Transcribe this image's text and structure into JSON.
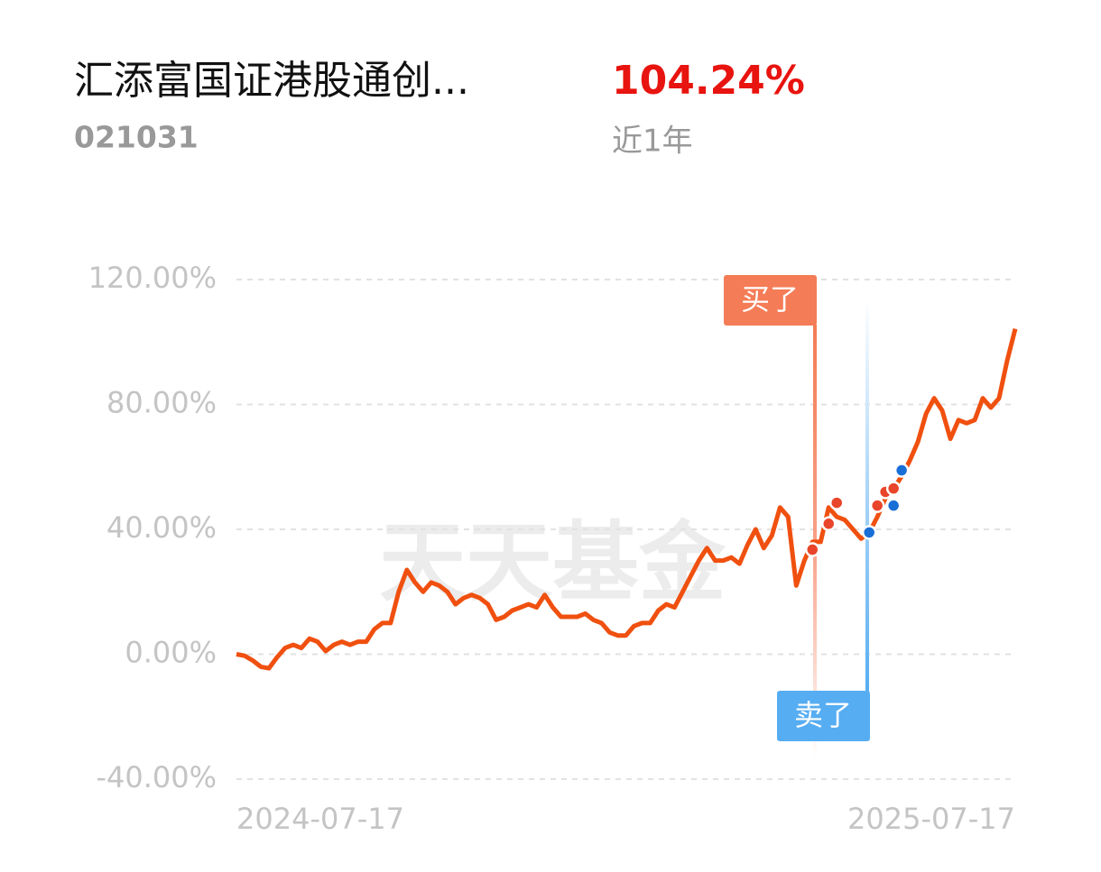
{
  "header": {
    "title": "汇添富国证港股通创...",
    "code": "021031",
    "return": "104.24%",
    "period": "近1年"
  },
  "chart_data": {
    "type": "line",
    "watermark": "天天基金",
    "color": "#f0500f",
    "categories": [
      "2024-07-17",
      null,
      null,
      null,
      null,
      null,
      null,
      null,
      null,
      null,
      null,
      null,
      null,
      null,
      null,
      null,
      null,
      null,
      null,
      null,
      null,
      null,
      null,
      null,
      null,
      null,
      null,
      null,
      null,
      null,
      null,
      null,
      null,
      null,
      null,
      null,
      null,
      null,
      null,
      null,
      null,
      null,
      null,
      null,
      null,
      null,
      null,
      null,
      null,
      null,
      null,
      null,
      null,
      null,
      null,
      null,
      null,
      null,
      null,
      null,
      null,
      null,
      null,
      null,
      null,
      null,
      null,
      null,
      null,
      null,
      null,
      null,
      null,
      null,
      null,
      null,
      null,
      null,
      null,
      null,
      null,
      null,
      null,
      null,
      null,
      null,
      null,
      null,
      null,
      null,
      null,
      null,
      null,
      null,
      null,
      null,
      "2025-07-17"
    ],
    "values": [
      0,
      -0.5,
      -2,
      -4,
      -4.5,
      -1,
      2,
      3,
      2,
      5,
      4,
      1,
      3,
      4,
      3,
      4,
      4,
      8,
      10,
      10,
      20,
      27,
      23,
      20,
      23,
      22,
      20,
      16,
      18,
      19,
      18,
      16,
      11,
      12,
      14,
      15,
      16,
      15,
      19,
      15,
      12,
      12,
      12,
      13,
      11,
      10,
      7,
      6,
      6,
      9,
      10,
      10,
      14,
      16,
      15,
      20,
      25,
      30,
      34,
      30,
      30,
      31,
      29,
      35,
      40,
      34,
      38,
      47,
      44,
      22,
      30,
      36,
      36,
      47,
      44,
      43,
      40,
      37,
      39,
      44,
      50,
      53,
      57,
      62,
      68,
      77,
      82,
      78,
      69,
      75,
      74,
      75,
      82,
      79,
      82,
      94,
      104.24
    ],
    "markers": [
      {
        "name": "买了",
        "color": "#e8452a",
        "label_color": "#f47c56",
        "values": [
          null,
          null,
          null,
          null,
          null,
          null,
          null,
          null,
          null,
          null,
          null,
          null,
          null,
          null,
          null,
          null,
          null,
          null,
          null,
          null,
          null,
          null,
          null,
          null,
          null,
          null,
          null,
          null,
          null,
          null,
          null,
          null,
          null,
          null,
          null,
          null,
          null,
          null,
          null,
          null,
          null,
          null,
          null,
          null,
          null,
          null,
          null,
          null,
          null,
          null,
          null,
          null,
          null,
          null,
          null,
          null,
          null,
          null,
          null,
          null,
          null,
          null,
          null,
          null,
          null,
          null,
          null,
          null,
          null,
          null,
          null,
          33.5,
          null,
          41.8,
          48.5,
          null,
          null,
          null,
          null,
          47.6,
          52,
          53.1,
          null,
          null,
          null,
          null,
          null,
          null,
          null,
          null,
          null,
          null,
          null,
          null,
          null,
          null,
          null
        ]
      },
      {
        "name": "卖了",
        "color": "#1a6fd6",
        "label_color": "#56adf2",
        "values": [
          null,
          null,
          null,
          null,
          null,
          null,
          null,
          null,
          null,
          null,
          null,
          null,
          null,
          null,
          null,
          null,
          null,
          null,
          null,
          null,
          null,
          null,
          null,
          null,
          null,
          null,
          null,
          null,
          null,
          null,
          null,
          null,
          null,
          null,
          null,
          null,
          null,
          null,
          null,
          null,
          null,
          null,
          null,
          null,
          null,
          null,
          null,
          null,
          null,
          null,
          null,
          null,
          null,
          null,
          null,
          null,
          null,
          null,
          null,
          null,
          null,
          null,
          null,
          null,
          null,
          null,
          null,
          null,
          null,
          null,
          null,
          null,
          null,
          null,
          null,
          null,
          null,
          null,
          39,
          null,
          null,
          47.6,
          58.9,
          null,
          null,
          null,
          null,
          null,
          null,
          null,
          null,
          null,
          null,
          null,
          null,
          null,
          null
        ]
      }
    ],
    "ylim": [
      -40,
      120
    ],
    "yticks": [
      {
        "value": -40,
        "label": "-40.00%"
      },
      {
        "value": 0,
        "label": "0.00%"
      },
      {
        "value": 40,
        "label": "40.00%"
      },
      {
        "value": 80,
        "label": "80.00%"
      },
      {
        "value": 120,
        "label": "120.00%"
      }
    ],
    "grid": true
  }
}
